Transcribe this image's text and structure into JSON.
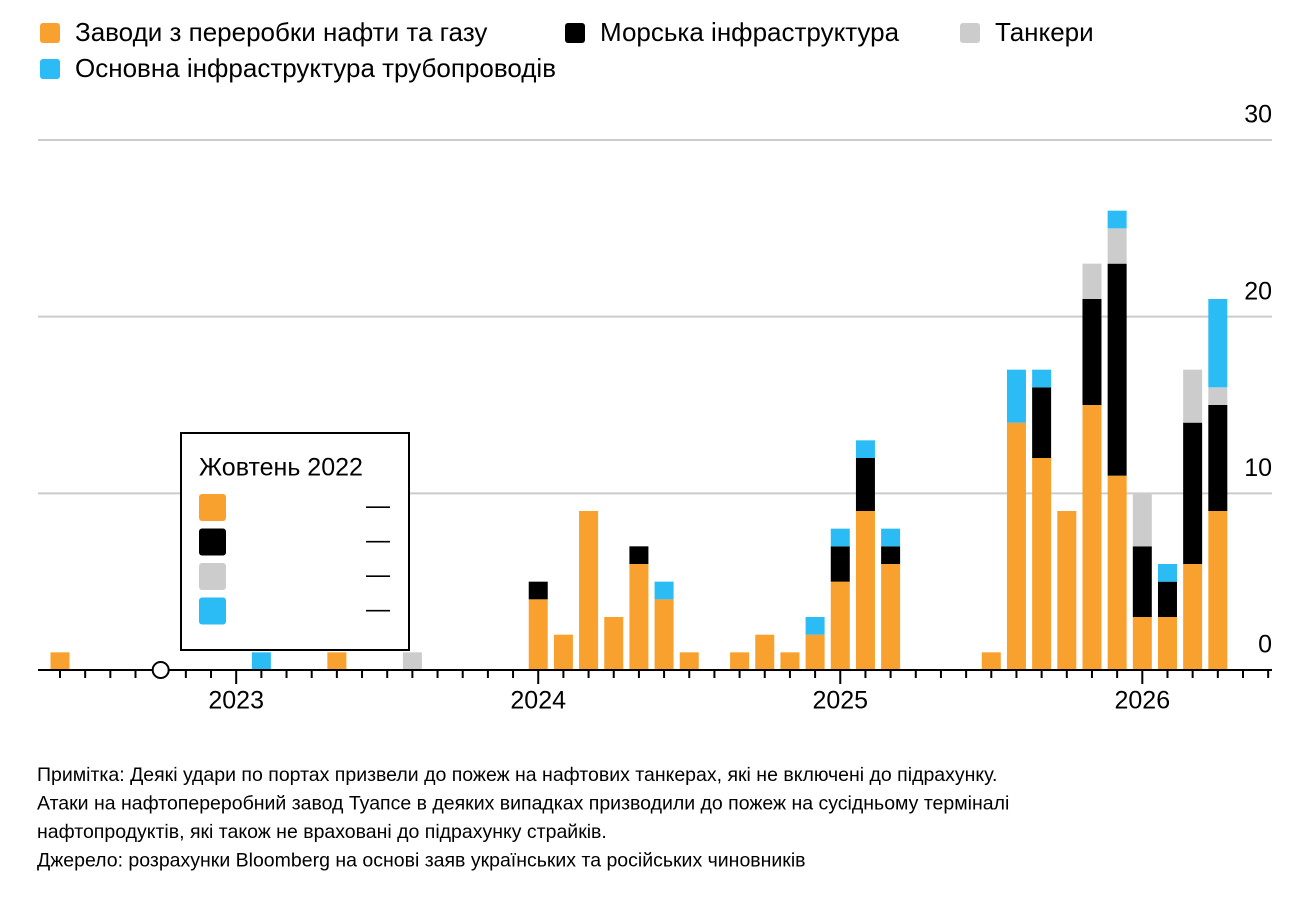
{
  "chart_data": {
    "type": "stacked_bar",
    "categories": [
      null,
      null,
      null,
      null,
      null,
      null,
      null,
      "2023",
      null,
      null,
      null,
      null,
      null,
      null,
      null,
      null,
      null,
      null,
      null,
      "2024",
      null,
      null,
      null,
      null,
      null,
      null,
      null,
      null,
      null,
      null,
      null,
      "2025",
      null,
      null,
      null,
      null,
      null,
      null,
      null,
      null,
      null,
      null,
      null,
      "2026",
      null,
      null,
      null
    ],
    "series": [
      {
        "name": "Заводи з переробки нафти та газу",
        "color": "#f9a12e",
        "values": [
          1,
          0,
          0,
          0,
          0,
          0,
          0,
          0,
          0,
          0,
          0,
          1,
          0,
          0,
          0,
          0,
          0,
          0,
          0,
          4,
          2,
          9,
          3,
          6,
          4,
          1,
          0,
          1,
          2,
          1,
          2,
          5,
          9,
          6,
          0,
          0,
          0,
          1,
          14,
          12,
          9,
          15,
          11,
          3,
          3,
          6,
          9
        ]
      },
      {
        "name": "Морська інфраструктура",
        "color": "#000000",
        "values": [
          0,
          0,
          0,
          0,
          0,
          0,
          0,
          0,
          0,
          0,
          0,
          0,
          0,
          0,
          0,
          0,
          0,
          0,
          0,
          1,
          0,
          0,
          0,
          1,
          0,
          0,
          0,
          0,
          0,
          0,
          0,
          2,
          3,
          1,
          0,
          0,
          0,
          0,
          0,
          4,
          0,
          6,
          12,
          4,
          2,
          8,
          6
        ]
      },
      {
        "name": "Танкери",
        "color": "#cccccc",
        "values": [
          0,
          0,
          0,
          0,
          0,
          0,
          0,
          0,
          0,
          0,
          0,
          0,
          0,
          0,
          1,
          0,
          0,
          0,
          0,
          0,
          0,
          0,
          0,
          0,
          0,
          0,
          0,
          0,
          0,
          0,
          0,
          0,
          0,
          0,
          0,
          0,
          0,
          0,
          0,
          0,
          0,
          2,
          2,
          3,
          0,
          3,
          1
        ]
      },
      {
        "name": "Основна інфраструктура трубопроводів",
        "color": "#2bbbf5",
        "values": [
          0,
          0,
          0,
          0,
          0,
          0,
          0,
          0,
          1,
          0,
          0,
          0,
          0,
          0,
          0,
          0,
          0,
          0,
          0,
          0,
          0,
          0,
          0,
          0,
          1,
          0,
          0,
          0,
          0,
          0,
          1,
          1,
          1,
          1,
          0,
          0,
          0,
          0,
          3,
          1,
          0,
          0,
          1,
          0,
          1,
          0,
          5
        ]
      }
    ],
    "ylim": [
      0,
      30
    ],
    "yticks": [
      0,
      10,
      20,
      30
    ],
    "grid": true,
    "tooltip": {
      "title": "Жовтень 2022",
      "values": [
        "—",
        "—",
        "—",
        "—"
      ]
    },
    "notes": [
      "Примітка: Деякі удари по портах призвели до пожеж на нафтових танкерах, які не включені до підрахунку.",
      "Атаки на нафтопереробний завод Туапсе в деяких випадках призводили до пожеж на сусідньому терміналі",
      "нафтопродуктів, які також не враховані до підрахунку страйків.",
      "Джерело: розрахунки Bloomberg на основі заяв українських та російських чиновників"
    ]
  }
}
